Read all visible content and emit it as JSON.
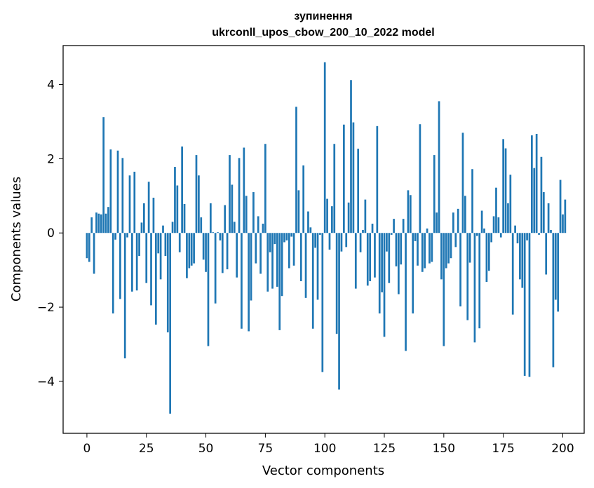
{
  "chart_data": {
    "type": "bar",
    "title": "зупинення",
    "subtitle": "ukrconll_upos_cbow_200_10_2022 model",
    "xlabel": "Vector components",
    "ylabel": "Components values",
    "xlim": [
      -10,
      209
    ],
    "ylim": [
      -5.4,
      5.05
    ],
    "xticks": [
      0,
      25,
      50,
      75,
      100,
      125,
      150,
      175,
      200
    ],
    "yticks": [
      -4,
      -2,
      0,
      2,
      4
    ],
    "grid": false,
    "bar_color": "#1f77b4",
    "values": [
      -0.68,
      -0.78,
      0.42,
      -1.1,
      0.55,
      0.52,
      0.5,
      3.12,
      0.52,
      0.7,
      2.25,
      -2.17,
      -0.18,
      2.22,
      -1.78,
      2.02,
      -3.38,
      -0.12,
      1.55,
      -1.58,
      1.65,
      -1.55,
      -0.62,
      0.28,
      0.8,
      -1.35,
      1.38,
      -1.95,
      0.95,
      -2.47,
      -0.55,
      -1.25,
      0.2,
      -0.62,
      -2.68,
      -4.87,
      0.3,
      1.78,
      1.28,
      -0.52,
      2.33,
      0.78,
      -1.22,
      -0.95,
      -0.88,
      -0.82,
      2.1,
      1.55,
      0.42,
      -0.72,
      -1.05,
      -3.05,
      0.8,
      0.02,
      -1.9,
      0.02,
      -0.2,
      -1.08,
      0.75,
      -0.98,
      2.1,
      1.3,
      0.3,
      -1.2,
      2.02,
      -2.58,
      2.3,
      1.0,
      -2.65,
      -1.82,
      1.1,
      -0.82,
      0.45,
      -1.1,
      0.25,
      2.4,
      -1.58,
      -0.52,
      -1.5,
      -0.3,
      -1.45,
      -2.62,
      -1.7,
      -0.25,
      -0.2,
      -0.95,
      -0.1,
      -0.88,
      3.4,
      1.15,
      -1.3,
      1.82,
      -1.75,
      0.58,
      0.15,
      -2.58,
      -0.4,
      -1.8,
      -0.05,
      -3.75,
      4.6,
      0.92,
      -0.45,
      0.72,
      2.4,
      -2.72,
      -4.22,
      -0.5,
      2.92,
      -0.38,
      0.82,
      4.12,
      2.98,
      -1.5,
      2.27,
      -0.52,
      0.08,
      0.9,
      -1.42,
      -1.3,
      0.25,
      -1.2,
      2.88,
      -2.17,
      -1.6,
      -2.8,
      -0.5,
      -1.35,
      -0.05,
      0.38,
      -0.9,
      -1.65,
      -0.85,
      0.38,
      -3.18,
      1.15,
      1.02,
      -2.17,
      -0.22,
      -0.88,
      2.93,
      -1.05,
      -0.95,
      0.12,
      -0.82,
      -0.78,
      2.1,
      0.55,
      3.55,
      -1.25,
      -3.05,
      -0.95,
      -0.82,
      -0.68,
      0.55,
      -0.38,
      0.65,
      -1.98,
      2.7,
      1.0,
      -2.35,
      -0.8,
      1.72,
      -2.95,
      -0.08,
      -2.57,
      0.6,
      0.12,
      -1.32,
      -1.02,
      -0.25,
      0.45,
      1.22,
      0.42,
      -0.12,
      2.53,
      2.28,
      0.8,
      1.57,
      -2.2,
      0.2,
      -0.28,
      -1.25,
      -1.48,
      -3.85,
      -0.2,
      -3.88,
      2.63,
      1.75,
      2.67,
      -0.05,
      2.05,
      1.1,
      -1.12,
      0.8,
      0.08,
      -3.62,
      -1.8,
      -2.12,
      1.43,
      0.5,
      0.9
    ]
  }
}
